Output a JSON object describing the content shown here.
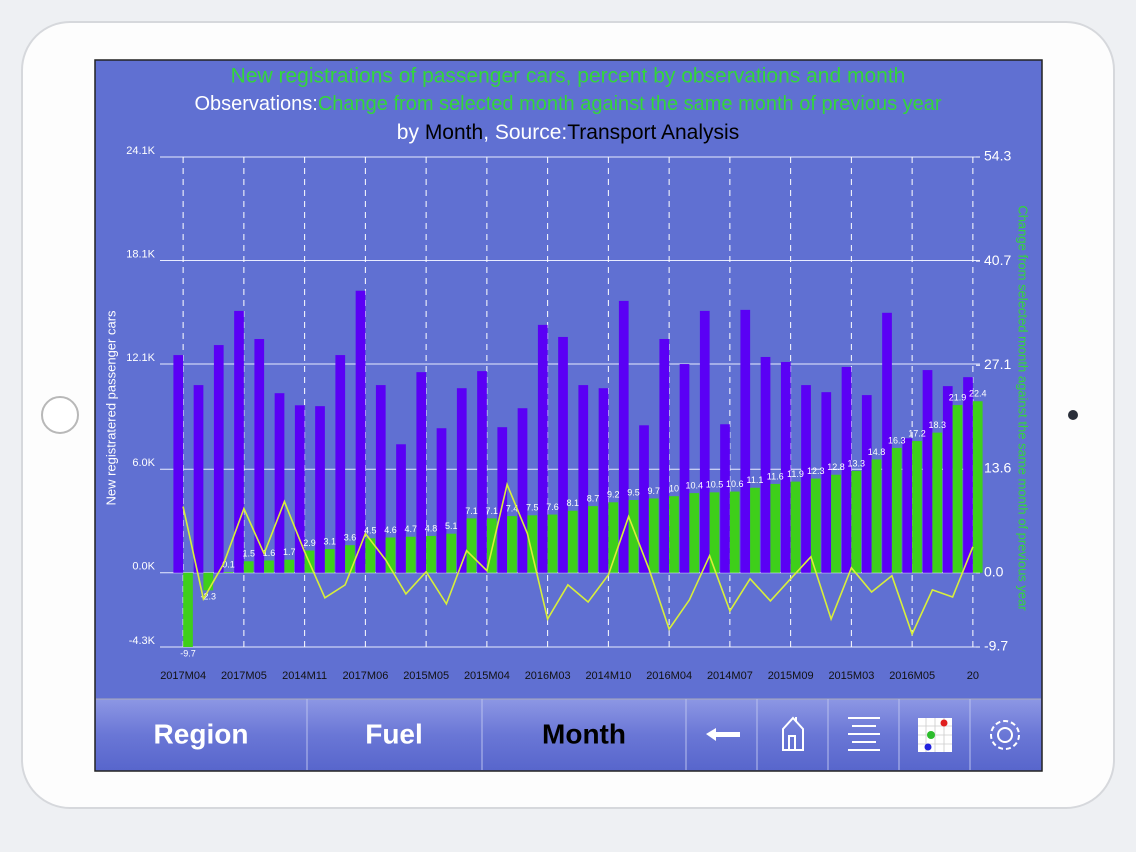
{
  "header": {
    "title": "New registrations of passenger cars, percent by observations and month",
    "line2": [
      "Observations:",
      "Change from selected month against the same month of previous year"
    ],
    "line3": [
      "by ",
      "Month",
      ", Source:",
      "Transport Analysis"
    ]
  },
  "chart_data": {
    "type": "bar",
    "y_label": "New registratered passenger cars",
    "y2_label": "Change from selected month against the same month of previous year",
    "categories": [
      "2017M04",
      null,
      null,
      "2017M05",
      null,
      null,
      "2014M11",
      null,
      null,
      "2017M06",
      null,
      null,
      "2015M05",
      null,
      null,
      "2015M04",
      null,
      null,
      "2016M03",
      null,
      null,
      "2014M10",
      null,
      null,
      "2016M04",
      null,
      null,
      "2014M07",
      null,
      null,
      "2015M09",
      null,
      null,
      "2015M03",
      null,
      null,
      "2016M05",
      null,
      null,
      "20"
    ],
    "series": [
      {
        "name": "New registratered passenger cars",
        "color": "#5a00f5",
        "values": [
          12620,
          10880,
          13200,
          15180,
          13550,
          10410,
          9710,
          9660,
          12620,
          16350,
          10880,
          7450,
          11630,
          8380,
          10700,
          11690,
          8440,
          9540,
          14370,
          13670,
          10880,
          10700,
          15760,
          8550,
          13550,
          12100,
          15180,
          8610,
          15240,
          12510,
          12220,
          10880,
          10470,
          11930,
          10300,
          15070,
          7800,
          11750,
          10820,
          11340
        ]
      },
      {
        "name": "Change from selected month against the same month of previous year",
        "color": "#3ecf1a",
        "axis": "y2",
        "values": [
          -9.7,
          -2.3,
          0.1,
          1.5,
          1.6,
          1.7,
          2.9,
          3.1,
          3.6,
          4.5,
          4.6,
          4.7,
          4.8,
          5.1,
          7.1,
          7.1,
          7.4,
          7.5,
          7.6,
          8.1,
          8.7,
          9.2,
          9.5,
          9.7,
          10,
          10.4,
          10.5,
          10.6,
          11.1,
          11.6,
          11.9,
          12.3,
          12.8,
          13.3,
          14.8,
          16.3,
          17.2,
          18.3,
          21.9,
          22.4
        ]
      },
      {
        "type": "line",
        "color": "#d8ef3a",
        "values": [
          3840,
          -1510,
          520,
          3720,
          1110,
          4130,
          1220,
          -1450,
          -700,
          2270,
          760,
          -1220,
          60,
          -1800,
          1280,
          120,
          5120,
          2270,
          -2680,
          -700,
          -1690,
          -120,
          3260,
          230,
          -3260,
          -1570,
          990,
          -2210,
          -350,
          -1630,
          -350,
          930,
          -2680,
          290,
          -1110,
          -170,
          -3550,
          -990,
          -1400,
          1510
        ]
      }
    ],
    "ylim": [
      -4300,
      24100
    ],
    "yticks": [
      {
        "value": -4300,
        "label": "-4.3K"
      },
      {
        "value": 0,
        "label": "0.0K"
      },
      {
        "value": 6000,
        "label": "6.0K"
      },
      {
        "value": 12100,
        "label": "12.1K"
      },
      {
        "value": 18100,
        "label": "18.1K"
      },
      {
        "value": 24100,
        "label": "24.1K"
      }
    ],
    "y2lim": [
      -9.7,
      54.3
    ],
    "y2ticks": [
      -9.7,
      {
        "value": 0,
        "label": "0.0"
      },
      13.6,
      27.1,
      40.7,
      54.3
    ],
    "grid": true
  },
  "toolbar": {
    "tabs": [
      "Region",
      "Fuel",
      "Month"
    ]
  }
}
